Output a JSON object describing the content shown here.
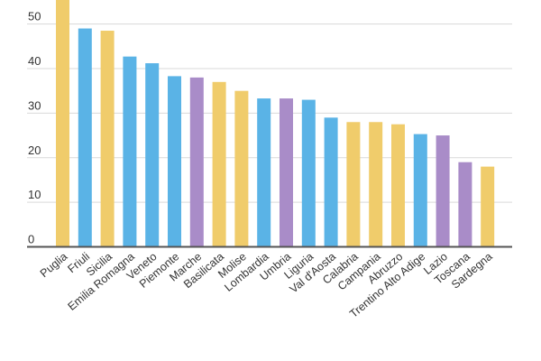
{
  "chart_data": {
    "type": "bar",
    "title": "",
    "xlabel": "",
    "ylabel": "",
    "ylim": [
      0,
      56
    ],
    "yticks": [
      0,
      10,
      20,
      30,
      40,
      50
    ],
    "grid": true,
    "legend": "none",
    "categories": [
      "Puglia",
      "Friuli",
      "Sicilia",
      "Emilia Romagna",
      "Veneto",
      "Piemonte",
      "Marche",
      "Basilicata",
      "Molise",
      "Lombardia",
      "Umbria",
      "Liguria",
      "Val d'Aosta",
      "Calabria",
      "Campania",
      "Abruzzo",
      "Trentino Alto Adige",
      "Lazio",
      "Toscana",
      "Sardegna"
    ],
    "values": [
      57,
      49,
      48.5,
      42.7,
      41.2,
      38.3,
      38,
      37,
      35,
      33.3,
      33.3,
      33,
      29,
      28,
      28,
      27.5,
      25.3,
      25,
      19,
      18
    ],
    "bar_colors": [
      "#f0cc6b",
      "#5ab3e6",
      "#f0cc6b",
      "#5ab3e6",
      "#5ab3e6",
      "#5ab3e6",
      "#a98cc8",
      "#f0cc6b",
      "#f0cc6b",
      "#5ab3e6",
      "#a98cc8",
      "#5ab3e6",
      "#5ab3e6",
      "#f0cc6b",
      "#f0cc6b",
      "#f0cc6b",
      "#5ab3e6",
      "#a98cc8",
      "#a98cc8",
      "#f0cc6b"
    ]
  }
}
